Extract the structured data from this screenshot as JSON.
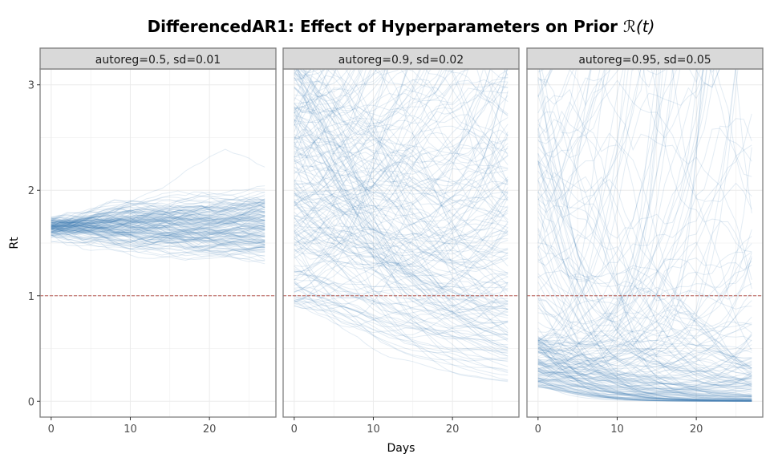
{
  "chart_data": {
    "type": "line",
    "title": "DifferencedAR1: Effect of Hyperparameters on Prior ",
    "title_math": "ℛ(t)",
    "xlabel": "Days",
    "ylabel": "Rt",
    "xlim": [
      -1.4,
      28.4
    ],
    "ylim": [
      -0.15,
      3.15
    ],
    "x_ticks": [
      "0",
      "10",
      "20"
    ],
    "x_tick_values": [
      0,
      10,
      20
    ],
    "y_ticks": [
      "0",
      "1",
      "2",
      "3"
    ],
    "y_tick_values": [
      0,
      1,
      2,
      3
    ],
    "reference_line": {
      "y": 1,
      "color": "#b5544c",
      "style": "dashed"
    },
    "line_color": "#4682b4",
    "days": 28,
    "panels": [
      {
        "label": "autoreg=0.5, sd=0.01",
        "autoreg": 0.5,
        "sd": 0.01,
        "n_samples": 150,
        "start_center": 1.65,
        "start_spread": 0.05,
        "drift_center": 0.0,
        "drift_spread": 0.01
      },
      {
        "label": "autoreg=0.9, sd=0.02",
        "autoreg": 0.9,
        "sd": 0.02,
        "n_samples": 200,
        "start_center": 1.7,
        "start_spread": 0.45,
        "drift_center": -0.015,
        "drift_spread": 0.035
      },
      {
        "label": "autoreg=0.95, sd=0.05",
        "autoreg": 0.95,
        "sd": 0.05,
        "n_samples": 200,
        "start_center": 0.6,
        "start_spread": 1.0,
        "drift_center": -0.07,
        "drift_spread": 0.07
      }
    ]
  }
}
